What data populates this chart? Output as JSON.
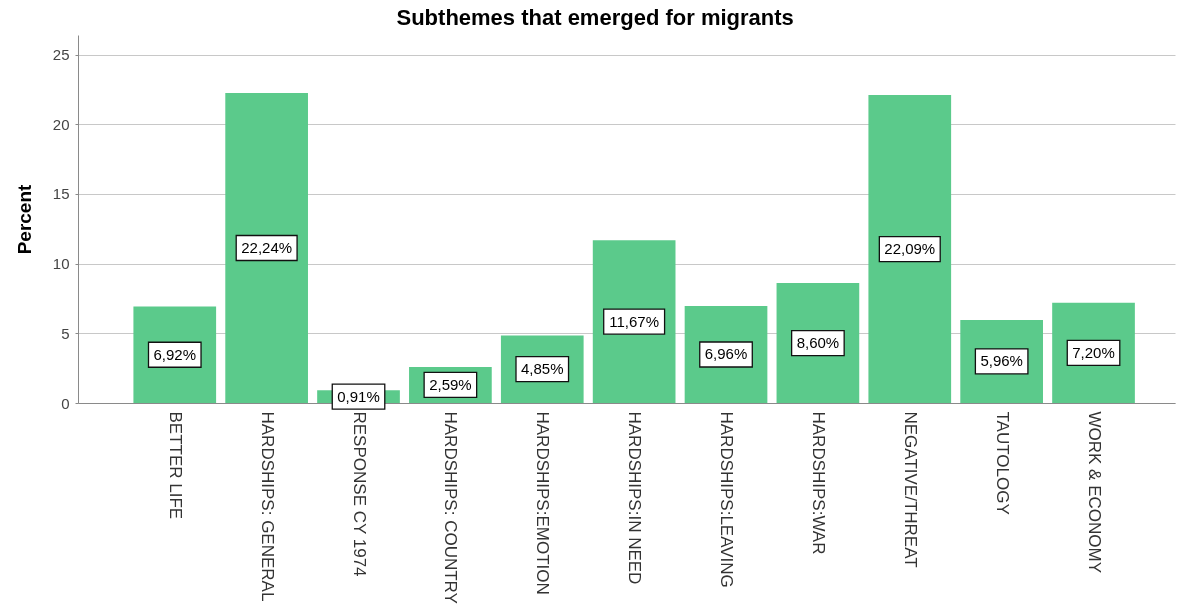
{
  "chart_data": {
    "type": "bar",
    "title": "Subthemes that emerged for migrants",
    "ylabel": "Percent",
    "categories": [
      "BETTER LIFE",
      "HARDSHIPS: GENERAL",
      "RESPONSE CY 1974",
      "HARDSHIPS: COUNTRY",
      "HARDSHIPS:EMOTION",
      "HARDSHIPS:IN NEED",
      "HARDSHIPS:LEAVING",
      "HARDSHIPS:WAR",
      "NEGATIVE/THREAT",
      "TAUTOLOGY",
      "WORK & ECONOMY"
    ],
    "values": [
      6.92,
      22.24,
      0.91,
      2.59,
      4.85,
      11.67,
      6.96,
      8.6,
      22.09,
      5.96,
      7.2
    ],
    "value_labels": [
      "6,92%",
      "22,24%",
      "0,91%",
      "2,59%",
      "4,85%",
      "11,67%",
      "6,96%",
      "8,60%",
      "22,09%",
      "5,96%",
      "7,20%"
    ],
    "color": "#5bca8b",
    "ylim": [
      0,
      26.4
    ],
    "yticks": [
      0,
      5,
      10,
      15,
      20,
      25
    ],
    "grid": "y"
  }
}
